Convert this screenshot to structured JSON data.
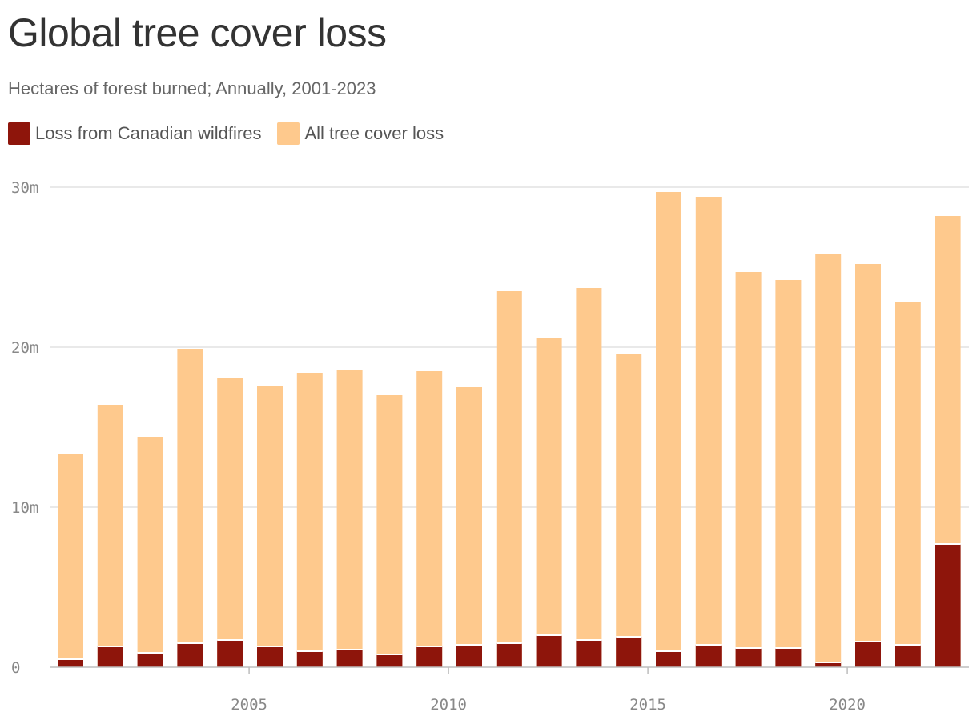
{
  "chart_data": {
    "type": "bar",
    "stacked": false,
    "overlapped": true,
    "title": "Global tree cover loss",
    "subtitle": "Hectares of forest burned; Annually, 2001-2023",
    "x": [
      2001,
      2002,
      2003,
      2004,
      2005,
      2006,
      2007,
      2008,
      2009,
      2010,
      2011,
      2012,
      2013,
      2014,
      2015,
      2016,
      2017,
      2018,
      2019,
      2020,
      2021,
      2022,
      2023
    ],
    "series": [
      {
        "name": "All tree cover loss",
        "color": "#fec98d",
        "values": [
          13.3,
          16.4,
          14.4,
          19.9,
          18.1,
          17.6,
          18.4,
          18.6,
          17.0,
          18.5,
          17.5,
          23.5,
          20.6,
          23.7,
          19.6,
          29.7,
          29.4,
          24.7,
          24.2,
          25.8,
          25.2,
          22.8,
          28.2
        ]
      },
      {
        "name": "Loss from Canadian wildfires",
        "color": "#8e150b",
        "values": [
          0.5,
          1.3,
          0.9,
          1.5,
          1.7,
          1.3,
          1.0,
          1.1,
          0.8,
          1.3,
          1.4,
          1.5,
          2.0,
          1.7,
          1.9,
          1.0,
          1.4,
          1.2,
          1.2,
          0.3,
          1.6,
          1.4,
          7.7
        ]
      }
    ],
    "legend": [
      "Loss from Canadian wildfires",
      "All tree cover loss"
    ],
    "legend_position": "top-left",
    "ylim": [
      0,
      30
    ],
    "yticks": [
      {
        "value": 0,
        "label": "0"
      },
      {
        "value": 10,
        "label": "10m"
      },
      {
        "value": 20,
        "label": "20m"
      },
      {
        "value": 30,
        "label": "30m"
      }
    ],
    "xticks": [
      {
        "value": 2005,
        "label": "2005"
      },
      {
        "value": 2010,
        "label": "2010"
      },
      {
        "value": 2015,
        "label": "2015"
      },
      {
        "value": 2020,
        "label": "2020"
      }
    ],
    "grid": true
  }
}
